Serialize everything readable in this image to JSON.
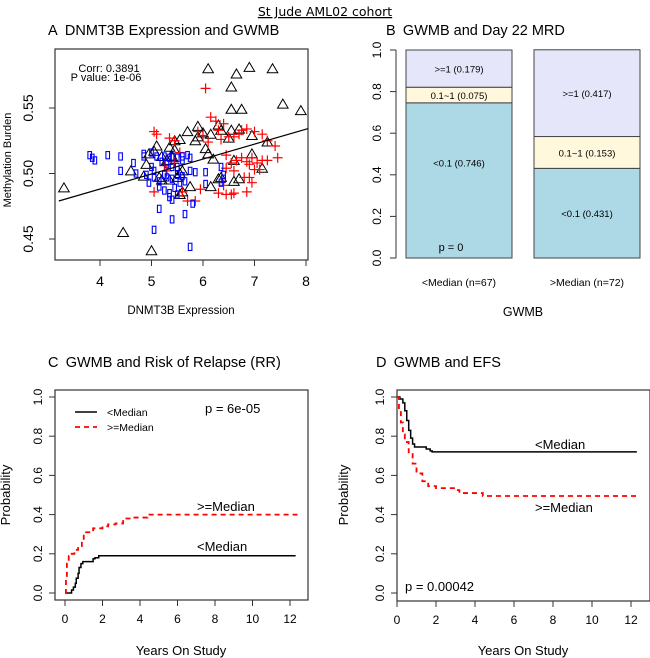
{
  "figure": {
    "title": "St Jude AML02 cohort"
  },
  "chart_data": [
    {
      "id": "A",
      "type": "scatter",
      "title": "A  DNMT3B Expression and GWMB",
      "xlabel": "DNMT3B Expression",
      "ylabel": "Methylation Burden",
      "xlim": [
        3.2,
        8.1
      ],
      "ylim": [
        0.43,
        0.59
      ],
      "xticks": [
        4,
        5,
        6,
        7,
        8
      ],
      "yticks": [
        0.45,
        0.5,
        0.55
      ],
      "ytick_labels": [
        "0.45",
        "0.50",
        "0.55"
      ],
      "annotations": [
        "Corr: 0.3891",
        "P value: 1e-06"
      ],
      "regression_line": {
        "x": [
          3.2,
          8.1
        ],
        "y": [
          0.479,
          0.535
        ]
      },
      "series": [
        {
          "name": "group-triangle",
          "marker": "triangle",
          "color": "#000000",
          "points": [
            [
              3.3,
              0.489
            ],
            [
              4.45,
              0.455
            ],
            [
              5.0,
              0.441
            ],
            [
              4.6,
              0.502
            ],
            [
              4.85,
              0.498
            ],
            [
              4.9,
              0.507
            ],
            [
              5.05,
              0.517
            ],
            [
              5.15,
              0.497
            ],
            [
              5.2,
              0.513
            ],
            [
              5.3,
              0.51
            ],
            [
              5.35,
              0.495
            ],
            [
              5.4,
              0.513
            ],
            [
              5.45,
              0.518
            ],
            [
              5.5,
              0.497
            ],
            [
              5.55,
              0.5
            ],
            [
              5.6,
              0.502
            ],
            [
              5.55,
              0.484
            ],
            [
              5.6,
              0.486
            ],
            [
              5.75,
              0.49
            ],
            [
              5.85,
              0.525
            ],
            [
              5.9,
              0.528
            ],
            [
              6.05,
              0.519
            ],
            [
              6.1,
              0.515
            ],
            [
              6.15,
              0.49
            ],
            [
              6.2,
              0.511
            ],
            [
              6.3,
              0.496
            ],
            [
              6.35,
              0.497
            ],
            [
              6.6,
              0.51
            ],
            [
              6.6,
              0.494
            ],
            [
              6.7,
              0.496
            ],
            [
              7.15,
              0.504
            ],
            [
              7.25,
              0.524
            ],
            [
              6.5,
              0.527
            ],
            [
              5.55,
              0.526
            ],
            [
              5.7,
              0.532
            ],
            [
              5.9,
              0.536
            ],
            [
              6.0,
              0.531
            ],
            [
              6.15,
              0.53
            ],
            [
              6.3,
              0.537
            ],
            [
              6.35,
              0.533
            ],
            [
              6.55,
              0.533
            ],
            [
              6.7,
              0.534
            ],
            [
              6.95,
              0.529
            ],
            [
              6.55,
              0.549
            ],
            [
              6.75,
              0.549
            ],
            [
              6.55,
              0.566
            ],
            [
              6.1,
              0.58
            ],
            [
              6.9,
              0.581
            ],
            [
              6.65,
              0.576
            ],
            [
              7.35,
              0.58
            ],
            [
              7.55,
              0.553
            ],
            [
              7.9,
              0.548
            ],
            [
              5.2,
              0.495
            ],
            [
              5.45,
              0.525
            ],
            [
              5.35,
              0.52
            ],
            [
              5.1,
              0.521
            ],
            [
              4.95,
              0.515
            ],
            [
              6.95,
              0.515
            ]
          ]
        },
        {
          "name": "group-plus",
          "marker": "plus",
          "color": "#ff0000",
          "points": [
            [
              6.05,
              0.565
            ],
            [
              6.15,
              0.543
            ],
            [
              6.25,
              0.54
            ],
            [
              6.4,
              0.538
            ],
            [
              6.3,
              0.533
            ],
            [
              5.9,
              0.532
            ],
            [
              6.0,
              0.529
            ],
            [
              5.05,
              0.532
            ],
            [
              5.1,
              0.53
            ],
            [
              5.35,
              0.527
            ],
            [
              5.45,
              0.525
            ],
            [
              5.55,
              0.516
            ],
            [
              6.1,
              0.524
            ],
            [
              6.35,
              0.526
            ],
            [
              6.5,
              0.528
            ],
            [
              6.6,
              0.528
            ],
            [
              6.7,
              0.53
            ],
            [
              6.75,
              0.533
            ],
            [
              6.85,
              0.534
            ],
            [
              7.0,
              0.532
            ],
            [
              7.15,
              0.53
            ],
            [
              7.25,
              0.525
            ],
            [
              7.4,
              0.521
            ],
            [
              6.45,
              0.514
            ],
            [
              6.55,
              0.508
            ],
            [
              6.65,
              0.51
            ],
            [
              6.75,
              0.512
            ],
            [
              6.85,
              0.509
            ],
            [
              6.95,
              0.512
            ],
            [
              7.05,
              0.508
            ],
            [
              7.15,
              0.51
            ],
            [
              7.25,
              0.51
            ],
            [
              7.45,
              0.512
            ],
            [
              6.9,
              0.507
            ],
            [
              7.0,
              0.503
            ],
            [
              7.1,
              0.503
            ],
            [
              6.45,
              0.504
            ],
            [
              6.6,
              0.502
            ],
            [
              6.8,
              0.497
            ],
            [
              6.9,
              0.497
            ],
            [
              6.95,
              0.493
            ],
            [
              6.4,
              0.491
            ],
            [
              6.6,
              0.485
            ],
            [
              5.95,
              0.488
            ],
            [
              6.3,
              0.485
            ],
            [
              6.45,
              0.484
            ],
            [
              6.55,
              0.484
            ],
            [
              5.05,
              0.486
            ],
            [
              5.6,
              0.486
            ],
            [
              5.7,
              0.479
            ],
            [
              5.85,
              0.479
            ],
            [
              5.3,
              0.502
            ],
            [
              5.45,
              0.509
            ],
            [
              5.25,
              0.506
            ],
            [
              6.85,
              0.486
            ]
          ]
        },
        {
          "name": "group-rectangle",
          "marker": "rectangle",
          "color": "#0000ff",
          "points": [
            [
              3.8,
              0.514
            ],
            [
              3.85,
              0.512
            ],
            [
              3.9,
              0.51
            ],
            [
              4.15,
              0.514
            ],
            [
              4.4,
              0.513
            ],
            [
              4.65,
              0.508
            ],
            [
              4.85,
              0.515
            ],
            [
              4.85,
              0.513
            ],
            [
              5.0,
              0.516
            ],
            [
              5.1,
              0.513
            ],
            [
              5.25,
              0.513
            ],
            [
              5.35,
              0.512
            ],
            [
              5.4,
              0.513
            ],
            [
              5.5,
              0.512
            ],
            [
              5.6,
              0.513
            ],
            [
              5.75,
              0.512
            ],
            [
              5.0,
              0.505
            ],
            [
              5.05,
              0.502
            ],
            [
              5.2,
              0.509
            ],
            [
              5.3,
              0.507
            ],
            [
              5.4,
              0.505
            ],
            [
              5.5,
              0.505
            ],
            [
              4.4,
              0.502
            ],
            [
              4.7,
              0.5
            ],
            [
              4.9,
              0.499
            ],
            [
              5.05,
              0.497
            ],
            [
              5.15,
              0.494
            ],
            [
              5.3,
              0.497
            ],
            [
              5.4,
              0.496
            ],
            [
              5.5,
              0.499
            ],
            [
              5.6,
              0.498
            ],
            [
              5.75,
              0.502
            ],
            [
              5.85,
              0.501
            ],
            [
              5.15,
              0.49
            ],
            [
              5.25,
              0.487
            ],
            [
              5.35,
              0.485
            ],
            [
              5.45,
              0.489
            ],
            [
              5.55,
              0.493
            ],
            [
              5.65,
              0.494
            ],
            [
              5.35,
              0.482
            ],
            [
              5.4,
              0.48
            ],
            [
              5.5,
              0.484
            ],
            [
              5.15,
              0.473
            ],
            [
              5.4,
              0.465
            ],
            [
              5.65,
              0.469
            ],
            [
              5.8,
              0.477
            ],
            [
              5.05,
              0.457
            ],
            [
              5.75,
              0.444
            ],
            [
              6.05,
              0.492
            ],
            [
              6.35,
              0.493
            ],
            [
              6.4,
              0.496
            ],
            [
              6.05,
              0.501
            ],
            [
              6.35,
              0.505
            ],
            [
              6.4,
              0.499
            ],
            [
              4.95,
              0.493
            ],
            [
              5.25,
              0.499
            ],
            [
              5.6,
              0.51
            ],
            [
              5.7,
              0.514
            ]
          ]
        }
      ]
    },
    {
      "id": "B",
      "type": "bar",
      "stacked": true,
      "title": "B  GWMB and Day 22 MRD",
      "xlabel": "GWMB",
      "ylabel": "",
      "ylim": [
        0,
        1
      ],
      "yticks": [
        0.0,
        0.2,
        0.4,
        0.6,
        0.8,
        1.0
      ],
      "ytick_labels": [
        "0.0",
        "0.2",
        "0.4",
        "0.6",
        "0.8",
        "1.0"
      ],
      "categories": [
        "<Median (n=67)",
        ">Median (n=72)"
      ],
      "series": [
        {
          "name": "<0.1",
          "color": "#add8e6",
          "values": [
            0.746,
            0.431
          ],
          "labels": [
            "<0.1 (0.746)",
            "<0.1 (0.431)"
          ]
        },
        {
          "name": "0.1~1",
          "color": "#fff8dc",
          "values": [
            0.075,
            0.153
          ],
          "labels": [
            "0.1~1 (0.075)",
            "0.1~1 (0.153)"
          ]
        },
        {
          "name": ">=1",
          "color": "#e6e6fa",
          "values": [
            0.179,
            0.417
          ],
          "labels": [
            ">=1 (0.179)",
            ">=1 (0.417)"
          ]
        }
      ],
      "annotations": [
        "p = 0"
      ]
    },
    {
      "id": "C",
      "type": "line",
      "step": true,
      "title": "C  GWMB and Risk of Relapse (RR)",
      "xlabel": "Years On Study",
      "ylabel": "Probability",
      "xlim": [
        -0.5,
        13
      ],
      "ylim": [
        -0.04,
        1.04
      ],
      "xticks": [
        0,
        2,
        4,
        6,
        8,
        10,
        12
      ],
      "yticks": [
        0.0,
        0.2,
        0.4,
        0.6,
        0.8,
        1.0
      ],
      "ytick_labels": [
        "0.0",
        "0.2",
        "0.4",
        "0.6",
        "0.8",
        "1.0"
      ],
      "legend": {
        "position": "top-left",
        "entries": [
          "<Median",
          ">=Median"
        ]
      },
      "annotations": [
        "p = 6e-05"
      ],
      "series": [
        {
          "name": "<Median",
          "style": "solid",
          "color": "#000000",
          "label": "<Median",
          "x": [
            0,
            0.3,
            0.35,
            0.45,
            0.55,
            0.6,
            0.7,
            0.75,
            0.85,
            0.95,
            1.5,
            1.6,
            1.8,
            12.3
          ],
          "y": [
            0,
            0,
            0.015,
            0.03,
            0.05,
            0.075,
            0.1,
            0.13,
            0.15,
            0.16,
            0.175,
            0.18,
            0.19,
            0.19
          ]
        },
        {
          "name": ">=Median",
          "style": "dashed",
          "color": "#ff0000",
          "label": ">=Median",
          "x": [
            0,
            0.05,
            0.1,
            0.2,
            0.3,
            0.5,
            0.7,
            0.9,
            1.0,
            1.5,
            2.0,
            2.3,
            2.7,
            3.1,
            3.5,
            4.4,
            12.4
          ],
          "y": [
            0,
            0.08,
            0.15,
            0.19,
            0.2,
            0.22,
            0.23,
            0.27,
            0.31,
            0.33,
            0.34,
            0.35,
            0.355,
            0.38,
            0.385,
            0.4,
            0.4
          ]
        }
      ]
    },
    {
      "id": "D",
      "type": "line",
      "step": true,
      "title": "D  GWMB and EFS",
      "xlabel": "Years On Study",
      "ylabel": "Probability",
      "xlim": [
        0,
        13
      ],
      "ylim": [
        -0.04,
        1.04
      ],
      "xticks": [
        0,
        2,
        4,
        6,
        8,
        10,
        12
      ],
      "yticks": [
        0.0,
        0.2,
        0.4,
        0.6,
        0.8,
        1.0
      ],
      "ytick_labels": [
        "0.0",
        "0.2",
        "0.4",
        "0.6",
        "0.8",
        "1.0"
      ],
      "annotations": [
        "p = 0.00042"
      ],
      "series": [
        {
          "name": "<Median",
          "style": "solid",
          "color": "#000000",
          "label": "<Median",
          "x": [
            0,
            0.15,
            0.3,
            0.4,
            0.5,
            0.6,
            0.7,
            0.8,
            0.9,
            1.0,
            1.5,
            1.7,
            1.8,
            12.3
          ],
          "y": [
            1,
            0.99,
            0.97,
            0.93,
            0.88,
            0.83,
            0.79,
            0.76,
            0.745,
            0.745,
            0.735,
            0.725,
            0.72,
            0.72
          ]
        },
        {
          "name": ">=Median",
          "style": "dashed",
          "color": "#ff0000",
          "label": ">=Median",
          "x": [
            0,
            0.1,
            0.2,
            0.3,
            0.4,
            0.6,
            0.8,
            1.0,
            1.3,
            1.6,
            2.0,
            3.0,
            3.2,
            4.4,
            12.4
          ],
          "y": [
            1,
            0.93,
            0.87,
            0.81,
            0.77,
            0.71,
            0.66,
            0.61,
            0.57,
            0.545,
            0.535,
            0.525,
            0.51,
            0.495,
            0.495
          ]
        }
      ]
    }
  ]
}
